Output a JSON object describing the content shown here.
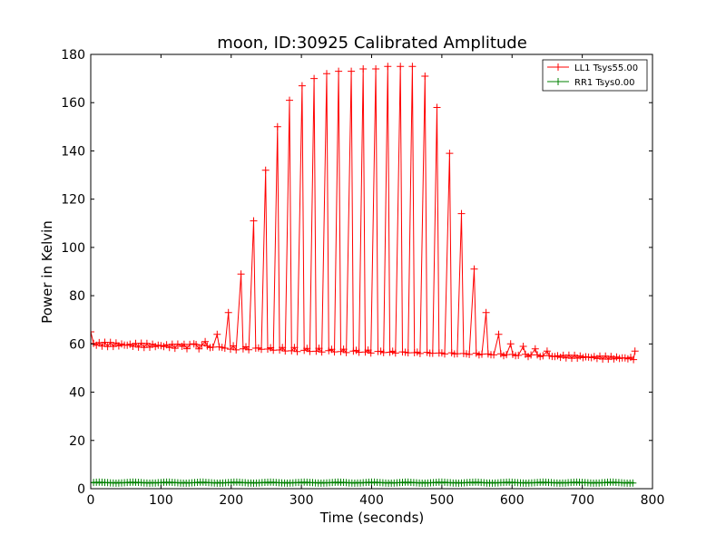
{
  "chart_data": {
    "type": "line",
    "title": "moon, ID:30925 Calibrated Amplitude",
    "xlabel": "Time (seconds)",
    "ylabel": "Power in Kelvin",
    "xlim": [
      0,
      800
    ],
    "ylim": [
      0,
      180
    ],
    "xticks": [
      0,
      100,
      200,
      300,
      400,
      500,
      600,
      700,
      800
    ],
    "yticks": [
      0,
      20,
      40,
      60,
      80,
      100,
      120,
      140,
      160,
      180
    ],
    "legend_position": "top-right",
    "series": [
      {
        "name": "LL1 Tsys55.00",
        "color": "#ff0000",
        "marker": "+",
        "x_start": 0,
        "x_end": 775,
        "baseline_start": 60,
        "baseline_end": 54,
        "initial_value": 65,
        "scan_peak_times": [
          130,
          147,
          163,
          180,
          196,
          214,
          232,
          249,
          266,
          283,
          301,
          318,
          336,
          353,
          371,
          388,
          406,
          423,
          441,
          458,
          476,
          493,
          511,
          528,
          546,
          563,
          581,
          598,
          616,
          633,
          650
        ],
        "scan_peak_values": [
          59,
          60,
          61,
          64,
          73,
          89,
          111,
          132,
          150,
          161,
          167,
          170,
          172,
          173,
          173,
          174,
          174,
          175,
          175,
          175,
          171,
          158,
          139,
          114,
          91,
          73,
          64,
          60,
          59,
          58,
          57
        ]
      },
      {
        "name": "RR1 Tsys0.00",
        "color": "#008000",
        "marker": "+",
        "x_start": 0,
        "x_end": 775,
        "baseline_start": 2.5,
        "baseline_end": 2.5
      }
    ]
  }
}
